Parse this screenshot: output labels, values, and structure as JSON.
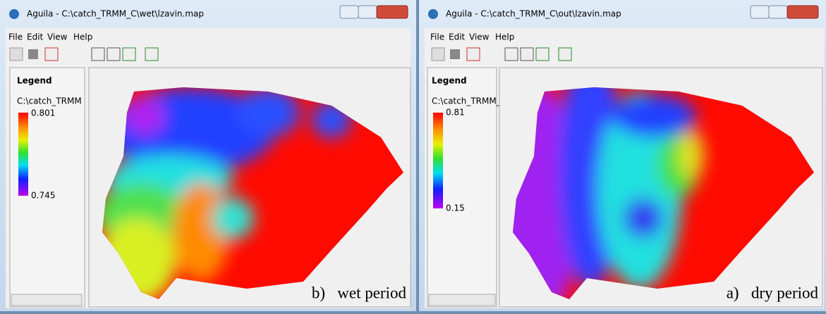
{
  "windows": [
    {
      "title": "Aguila - C:\\catch_TRMM_C\\wet\\lzavin.map",
      "menu": [
        "File",
        "Edit",
        "View",
        "Help"
      ],
      "legend": {
        "title": "Legend",
        "layer": "C:\\catch_TRMM",
        "max": 0.801,
        "min": 0.745
      },
      "caption": "b)   wet period"
    },
    {
      "title": "Aguila - C:\\catch_TRMM_C\\out\\lzavin.map",
      "menu": [
        "File",
        "Edit",
        "View",
        "Help"
      ],
      "legend": {
        "title": "Legend",
        "layer": "C:\\catch_TRMM_",
        "max": 0.81,
        "min": 0.15
      },
      "caption": "a)   dry period"
    }
  ]
}
